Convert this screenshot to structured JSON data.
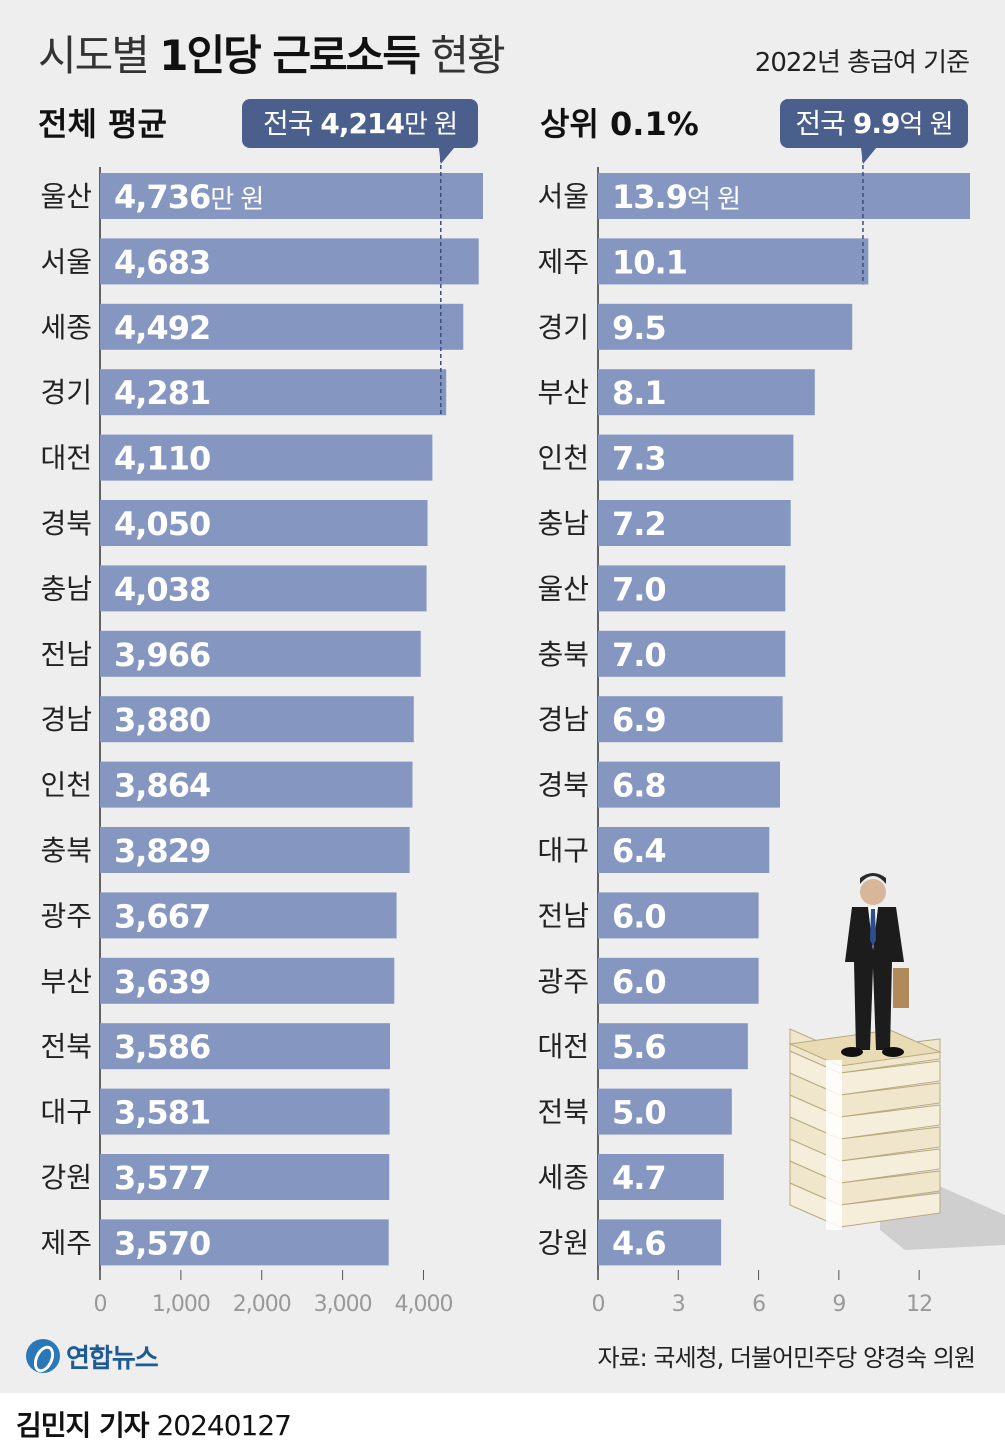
{
  "header": {
    "title_light": "시도별",
    "title_bold": "1인당 근로소득",
    "title_light2": "현황",
    "basis": "2022년 총급여 기준"
  },
  "colors": {
    "bar": "#8597c0",
    "callout": "#4a5f8c",
    "panel": "#eeeeee"
  },
  "chart_data": [
    {
      "type": "bar",
      "title": "전체 평균",
      "orientation": "horizontal",
      "unit_label": "만 원",
      "national_label": "전국",
      "national_value": 4214,
      "national_value_text": "4,214",
      "categories": [
        "울산",
        "서울",
        "세종",
        "경기",
        "대전",
        "경북",
        "충남",
        "전남",
        "경남",
        "인천",
        "충북",
        "광주",
        "부산",
        "전북",
        "대구",
        "강원",
        "제주"
      ],
      "values": [
        4736,
        4683,
        4492,
        4281,
        4110,
        4050,
        4038,
        3966,
        3880,
        3864,
        3829,
        3667,
        3639,
        3586,
        3581,
        3577,
        3570
      ],
      "value_labels": [
        "4,736",
        "4,683",
        "4,492",
        "4,281",
        "4,110",
        "4,050",
        "4,038",
        "3,966",
        "3,880",
        "3,864",
        "3,829",
        "3,667",
        "3,639",
        "3,586",
        "3,581",
        "3,577",
        "3,570"
      ],
      "xlim": [
        0,
        4736
      ],
      "xticks": [
        0,
        1000,
        2000,
        3000,
        4000
      ],
      "xtick_labels": [
        "0",
        "1,000",
        "2,000",
        "3,000",
        "4,000"
      ]
    },
    {
      "type": "bar",
      "title": "상위 0.1%",
      "orientation": "horizontal",
      "unit_label": "억 원",
      "national_label": "전국",
      "national_value": 9.9,
      "national_value_text": "9.9",
      "categories": [
        "서울",
        "제주",
        "경기",
        "부산",
        "인천",
        "충남",
        "울산",
        "충북",
        "경남",
        "경북",
        "대구",
        "전남",
        "광주",
        "대전",
        "전북",
        "세종",
        "강원"
      ],
      "values": [
        13.9,
        10.1,
        9.5,
        8.1,
        7.3,
        7.2,
        7.0,
        7.0,
        6.9,
        6.8,
        6.4,
        6.0,
        6.0,
        5.6,
        5.0,
        4.7,
        4.6
      ],
      "value_labels": [
        "13.9",
        "10.1",
        "9.5",
        "8.1",
        "7.3",
        "7.2",
        "7.0",
        "7.0",
        "6.9",
        "6.8",
        "6.4",
        "6.0",
        "6.0",
        "5.6",
        "5.0",
        "4.7",
        "4.6"
      ],
      "xlim": [
        0,
        13.9
      ],
      "xticks": [
        0,
        3,
        6,
        9,
        12
      ],
      "xtick_labels": [
        "0",
        "3",
        "6",
        "9",
        "12"
      ]
    }
  ],
  "footer": {
    "logo_text": "연합뉴스",
    "source": "자료: 국세청, 더불어민주당 양경숙 의원",
    "reporter": "김민지 기자",
    "date": "20240127"
  }
}
